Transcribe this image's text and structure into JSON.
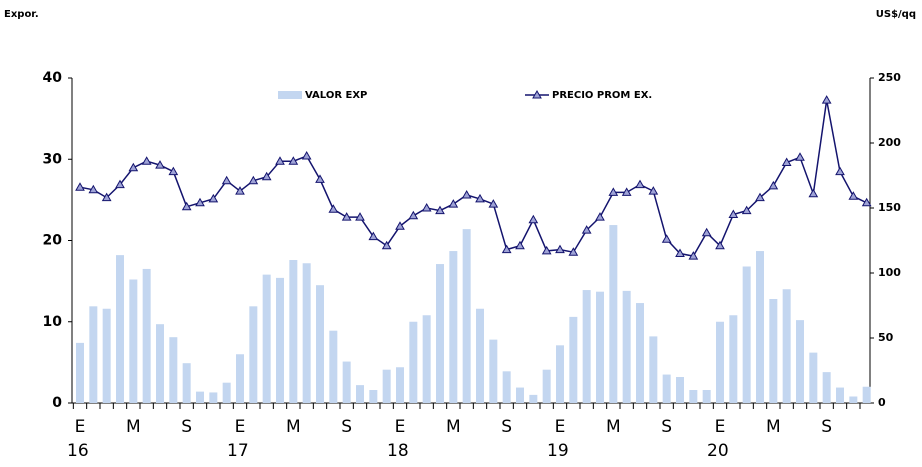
{
  "chart_data": {
    "type": "bar+line",
    "y_label": "Expor.",
    "y2_label": "US$/qq",
    "categories": [
      "E",
      null,
      null,
      null,
      "M",
      null,
      null,
      null,
      "S",
      null,
      null,
      null,
      "E",
      null,
      null,
      null,
      "M",
      null,
      null,
      null,
      "S",
      null,
      null,
      null,
      "E",
      null,
      null,
      null,
      "M",
      null,
      null,
      null,
      "S",
      null,
      null,
      null,
      "E",
      null,
      null,
      null,
      "M",
      null,
      null,
      null,
      "S",
      null,
      null,
      null,
      "E",
      null,
      null,
      null,
      "M",
      null,
      null,
      null,
      "S",
      null,
      null,
      null
    ],
    "years": [
      "16",
      "17",
      "18",
      "19",
      "20"
    ],
    "series": [
      {
        "name": "VALOR EXP",
        "type": "bar",
        "color": "#c3d6f0",
        "values": [
          7.4,
          11.9,
          11.6,
          18.2,
          15.2,
          16.5,
          9.7,
          8.1,
          4.9,
          1.4,
          1.3,
          2.5,
          6.0,
          11.9,
          15.8,
          15.4,
          17.6,
          17.2,
          14.5,
          8.9,
          5.1,
          2.2,
          1.6,
          4.1,
          4.4,
          10.0,
          10.8,
          17.1,
          18.7,
          21.4,
          11.6,
          7.8,
          3.9,
          1.9,
          1.0,
          4.1,
          7.1,
          10.6,
          13.9,
          13.7,
          21.9,
          13.8,
          12.3,
          8.2,
          3.5,
          3.2,
          1.6,
          1.6,
          10.0,
          10.8,
          16.8,
          18.7,
          12.8,
          14.0,
          10.2,
          6.2,
          3.8,
          1.9,
          0.8,
          2.0
        ]
      },
      {
        "name": "PRECIO PROM EX.",
        "type": "line",
        "axis": "y2",
        "color": "#14146e",
        "values": [
          166,
          164,
          158,
          168,
          181,
          186,
          183,
          178,
          151,
          154,
          157,
          171,
          163,
          171,
          174,
          186,
          186,
          190,
          172,
          149,
          143,
          143,
          128,
          121,
          136,
          144,
          150,
          148,
          153,
          160,
          157,
          153,
          118,
          121,
          141,
          117,
          118,
          116,
          133,
          143,
          162,
          162,
          168,
          163,
          126,
          115,
          113,
          131,
          121,
          145,
          148,
          158,
          167,
          185,
          189,
          161,
          233,
          178,
          159,
          154
        ]
      }
    ],
    "ylim": [
      0,
      40
    ],
    "yticks": [
      0,
      10,
      20,
      30,
      40
    ],
    "y2lim": [
      0,
      250
    ],
    "y2ticks": [
      0,
      50,
      100,
      150,
      200,
      250
    ]
  }
}
